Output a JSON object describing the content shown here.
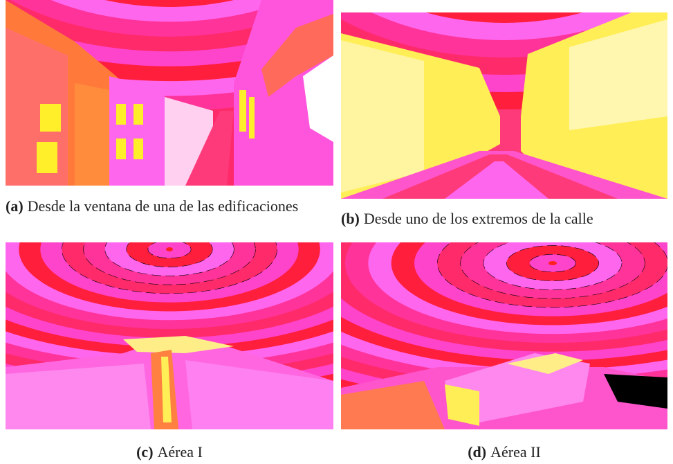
{
  "figures": [
    {
      "label": "(a)",
      "caption": "Desde la ventana de una de las edificaciones"
    },
    {
      "label": "(b)",
      "caption": "Desde uno de los extremos de la calle"
    },
    {
      "label": "(c)",
      "caption": "Aérea I"
    },
    {
      "label": "(d)",
      "caption": "Aérea II"
    }
  ]
}
